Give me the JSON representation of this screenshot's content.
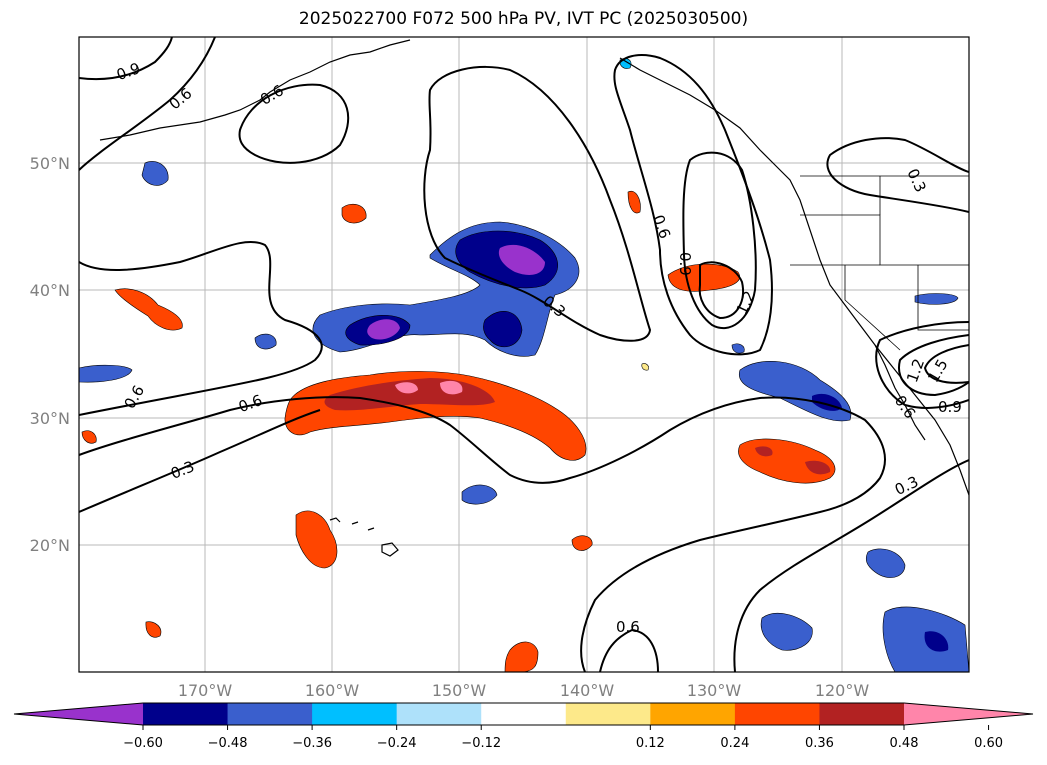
{
  "title": "2025022700 F072 500 hPa PV, IVT PC (2025030500)",
  "lat_labels": [
    "50°N",
    "40°N",
    "30°N",
    "20°N"
  ],
  "lon_labels": [
    "170°W",
    "160°W",
    "150°W",
    "140°W",
    "130°W",
    "120°W"
  ],
  "colorbar": {
    "ticks": [
      "−0.60",
      "−0.48",
      "−0.36",
      "−0.24",
      "−0.12",
      "0.12",
      "0.24",
      "0.36",
      "0.48",
      "0.60"
    ],
    "colors": [
      "#9932cc",
      "#00008b",
      "#3a5fcd",
      "#00bfff",
      "#aee1fa",
      "#ffffff",
      "#fde98a",
      "#ffa500",
      "#ff4500",
      "#b22222",
      "#ff85aa"
    ]
  },
  "contour_labels": [
    "0.9",
    "0.6",
    "0.6",
    "0.6",
    "0.3",
    "0.6",
    "0.6",
    "0.3",
    "0.9",
    "1.2",
    "0.3",
    "0.6",
    "0.9",
    "1.2",
    "1.5",
    "0.3",
    "0.6"
  ]
}
